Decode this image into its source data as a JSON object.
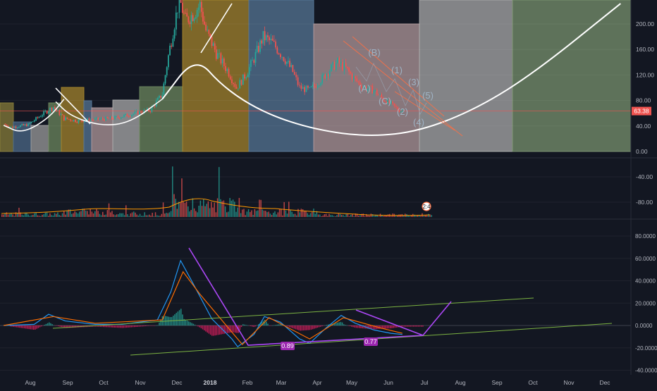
{
  "chart_data": [
    {
      "type": "candlestick",
      "pane": "price",
      "title": "",
      "ylim": [
        0,
        230
      ],
      "y_ticks": [
        "200.00",
        "160.00",
        "120.00",
        "80.00",
        "40.00",
        "0.00"
      ],
      "y_tick_values": [
        200,
        160,
        120,
        80,
        40,
        0
      ],
      "x_ticks": [
        "Aug",
        "Sep",
        "Oct",
        "Nov",
        "Dec",
        "2018",
        "Feb",
        "Mar",
        "Apr",
        "May",
        "Jun",
        "Jul",
        "Aug",
        "Sep",
        "Oct",
        "Nov",
        "Dec"
      ],
      "last_price": "63.38",
      "last_price_value": 63.38,
      "close_path": [
        {
          "date": "2017-07-20",
          "value": 43
        },
        {
          "date": "2017-08-01",
          "value": 38
        },
        {
          "date": "2017-08-15",
          "value": 42
        },
        {
          "date": "2017-08-28",
          "value": 60
        },
        {
          "date": "2017-09-05",
          "value": 70
        },
        {
          "date": "2017-09-14",
          "value": 52
        },
        {
          "date": "2017-09-25",
          "value": 48
        },
        {
          "date": "2017-10-10",
          "value": 50
        },
        {
          "date": "2017-10-25",
          "value": 52
        },
        {
          "date": "2017-11-08",
          "value": 58
        },
        {
          "date": "2017-11-25",
          "value": 65
        },
        {
          "date": "2017-12-05",
          "value": 90
        },
        {
          "date": "2017-12-10",
          "value": 150
        },
        {
          "date": "2017-12-15",
          "value": 200
        },
        {
          "date": "2017-12-19",
          "value": 240
        },
        {
          "date": "2017-12-24",
          "value": 205
        },
        {
          "date": "2017-12-30",
          "value": 215
        },
        {
          "date": "2018-01-05",
          "value": 230
        },
        {
          "date": "2018-01-10",
          "value": 190
        },
        {
          "date": "2018-01-20",
          "value": 150
        },
        {
          "date": "2018-01-28",
          "value": 128
        },
        {
          "date": "2018-02-05",
          "value": 100
        },
        {
          "date": "2018-02-12",
          "value": 118
        },
        {
          "date": "2018-02-20",
          "value": 145
        },
        {
          "date": "2018-02-28",
          "value": 180
        },
        {
          "date": "2018-03-08",
          "value": 170
        },
        {
          "date": "2018-03-18",
          "value": 148
        },
        {
          "date": "2018-03-26",
          "value": 125
        },
        {
          "date": "2018-04-01",
          "value": 100
        },
        {
          "date": "2018-04-10",
          "value": 96
        },
        {
          "date": "2018-04-20",
          "value": 112
        },
        {
          "date": "2018-04-28",
          "value": 128
        },
        {
          "date": "2018-05-05",
          "value": 140
        },
        {
          "date": "2018-05-12",
          "value": 130
        },
        {
          "date": "2018-05-20",
          "value": 112
        },
        {
          "date": "2018-05-28",
          "value": 100
        },
        {
          "date": "2018-06-05",
          "value": 96
        },
        {
          "date": "2018-06-13",
          "value": 82
        },
        {
          "date": "2018-06-20",
          "value": 74
        },
        {
          "date": "2018-06-26",
          "value": 66
        },
        {
          "date": "2018-06-30",
          "value": 63.38
        }
      ],
      "cup_curve": [
        {
          "date": "2017-12-05",
          "value": 82
        },
        {
          "date": "2018-01-01",
          "value": 150
        },
        {
          "date": "2018-01-25",
          "value": 100
        },
        {
          "date": "2018-03-01",
          "value": 60
        },
        {
          "date": "2018-04-15",
          "value": 34
        },
        {
          "date": "2018-06-01",
          "value": 23
        },
        {
          "date": "2018-07-15",
          "value": 32
        },
        {
          "date": "2018-09-01",
          "value": 68
        },
        {
          "date": "2018-10-20",
          "value": 125
        },
        {
          "date": "2018-12-31",
          "value": 232
        }
      ],
      "small_cup_curve": [
        {
          "date": "2017-07-20",
          "value": 41
        },
        {
          "date": "2017-08-10",
          "value": 28
        },
        {
          "date": "2017-09-01",
          "value": 52
        },
        {
          "date": "2017-09-14",
          "value": 82
        }
      ],
      "small_cup_curve_2": [
        {
          "date": "2017-09-07",
          "value": 78
        },
        {
          "date": "2017-09-20",
          "value": 55
        },
        {
          "date": "2017-10-15",
          "value": 40
        },
        {
          "date": "2017-11-08",
          "value": 45
        },
        {
          "date": "2017-12-05",
          "value": 82
        }
      ],
      "wave_labels": [
        "(B)",
        "(A)",
        "(C)",
        "(1)",
        "(2)",
        "(3)",
        "(4)",
        "(5)"
      ],
      "colors": {
        "up": "#26a69a",
        "down": "#ef5350",
        "cup": "#ffffff",
        "price_line": "#ef5350"
      }
    },
    {
      "type": "bar",
      "pane": "volume",
      "y_ticks": [
        "-40.00",
        "-80.00"
      ],
      "y_tick_values": [
        -40,
        -80
      ],
      "marker_label": "2:4",
      "moving_average_color": "#ff9800"
    },
    {
      "type": "macd",
      "pane": "oscillator",
      "ylim": [
        -40,
        80
      ],
      "y_ticks": [
        "80.0000",
        "60.0000",
        "40.0000",
        "20.0000",
        "0.0000",
        "-20.0000",
        "-40.0000"
      ],
      "y_tick_values": [
        80,
        60,
        40,
        20,
        0,
        -20,
        -40
      ],
      "labels": [
        "0.89",
        "0.77"
      ],
      "macd_line": [
        {
          "date": "2017-07-20",
          "value": 0
        },
        {
          "date": "2017-08-20",
          "value": 1
        },
        {
          "date": "2017-09-01",
          "value": 10
        },
        {
          "date": "2017-09-15",
          "value": 4
        },
        {
          "date": "2017-10-10",
          "value": 1
        },
        {
          "date": "2017-11-01",
          "value": 1
        },
        {
          "date": "2017-12-01",
          "value": 5
        },
        {
          "date": "2017-12-12",
          "value": 30
        },
        {
          "date": "2017-12-20",
          "value": 58
        },
        {
          "date": "2017-12-30",
          "value": 38
        },
        {
          "date": "2018-01-15",
          "value": 6
        },
        {
          "date": "2018-02-01",
          "value": -12
        },
        {
          "date": "2018-02-06",
          "value": -19
        },
        {
          "date": "2018-02-20",
          "value": -8
        },
        {
          "date": "2018-03-01",
          "value": 8
        },
        {
          "date": "2018-03-15",
          "value": 3
        },
        {
          "date": "2018-04-01",
          "value": -12
        },
        {
          "date": "2018-04-10",
          "value": -16
        },
        {
          "date": "2018-04-25",
          "value": -2
        },
        {
          "date": "2018-05-08",
          "value": 9
        },
        {
          "date": "2018-05-20",
          "value": 2
        },
        {
          "date": "2018-06-05",
          "value": -4
        },
        {
          "date": "2018-06-20",
          "value": -7
        },
        {
          "date": "2018-06-30",
          "value": -8
        }
      ],
      "signal_line": [
        {
          "date": "2017-07-20",
          "value": 0
        },
        {
          "date": "2017-09-05",
          "value": 8
        },
        {
          "date": "2017-10-10",
          "value": 2
        },
        {
          "date": "2017-12-05",
          "value": 5
        },
        {
          "date": "2017-12-22",
          "value": 48
        },
        {
          "date": "2018-01-05",
          "value": 28
        },
        {
          "date": "2018-02-01",
          "value": -6
        },
        {
          "date": "2018-02-10",
          "value": -17
        },
        {
          "date": "2018-03-05",
          "value": 7
        },
        {
          "date": "2018-04-10",
          "value": -12
        },
        {
          "date": "2018-05-10",
          "value": 7
        },
        {
          "date": "2018-06-10",
          "value": -2
        },
        {
          "date": "2018-06-30",
          "value": -7
        }
      ],
      "colors": {
        "macd": "#2196f3",
        "signal": "#ff6d00",
        "trend": "#ab47f5",
        "channel": "#7cb342",
        "hist_pos": "#26a69a",
        "hist_neg": "#e91e63"
      }
    }
  ]
}
